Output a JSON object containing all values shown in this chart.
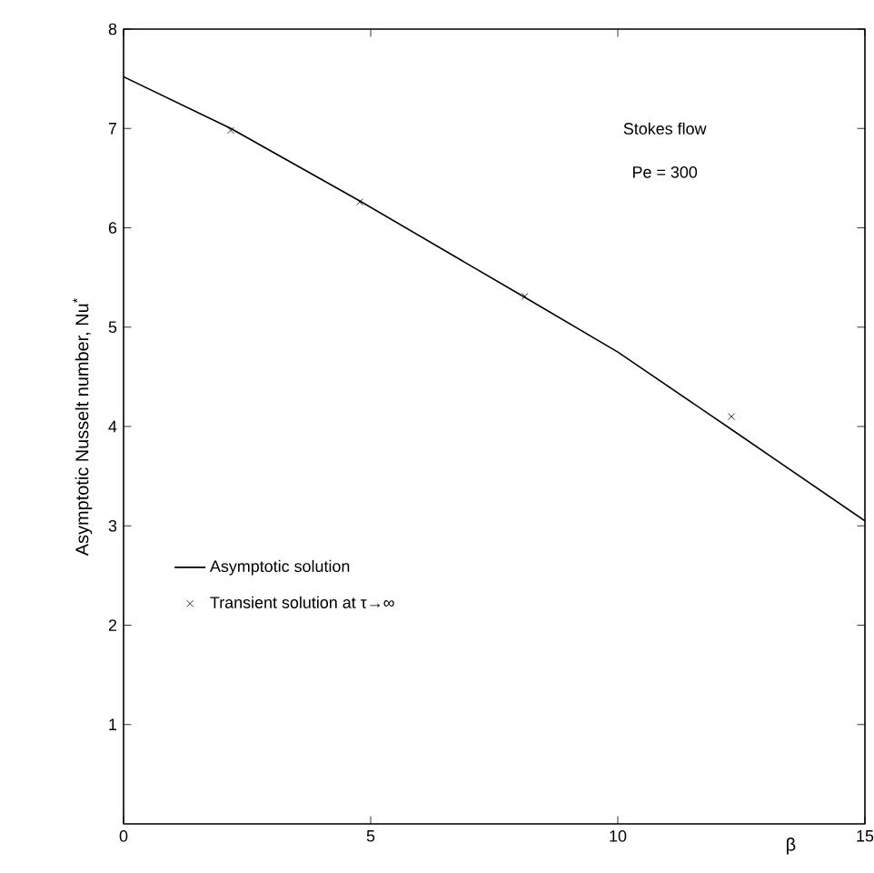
{
  "chart_data": {
    "type": "line",
    "xlabel": "β",
    "ylabel": "Asymptotic  Nusselt number, Nu$^{*}$",
    "xlim": [
      0,
      15
    ],
    "ylim": [
      0,
      8
    ],
    "xticks": [
      0,
      5,
      10,
      15
    ],
    "yticks": [
      1,
      2,
      3,
      4,
      5,
      6,
      7,
      8
    ],
    "legend": "left",
    "grid": false,
    "annotations": [
      "Stokes flow",
      "Pe = 300"
    ],
    "series": [
      {
        "name": "Asymptotic solution",
        "color": "#000000",
        "line_style": "solid",
        "marker": "none",
        "x": [
          0,
          2.17,
          4.78,
          8.12,
          10,
          12.3,
          15
        ],
        "values": [
          7.52,
          7.0,
          6.27,
          5.3,
          4.75,
          3.97,
          3.05
        ]
      },
      {
        "name": "Transient solution at τ→∞",
        "type": "scatter",
        "color": "#000000",
        "marker": "cross",
        "x": [
          2.17,
          4.78,
          8.12,
          12.3
        ],
        "values": [
          6.98,
          6.26,
          5.31,
          4.1
        ]
      }
    ]
  }
}
